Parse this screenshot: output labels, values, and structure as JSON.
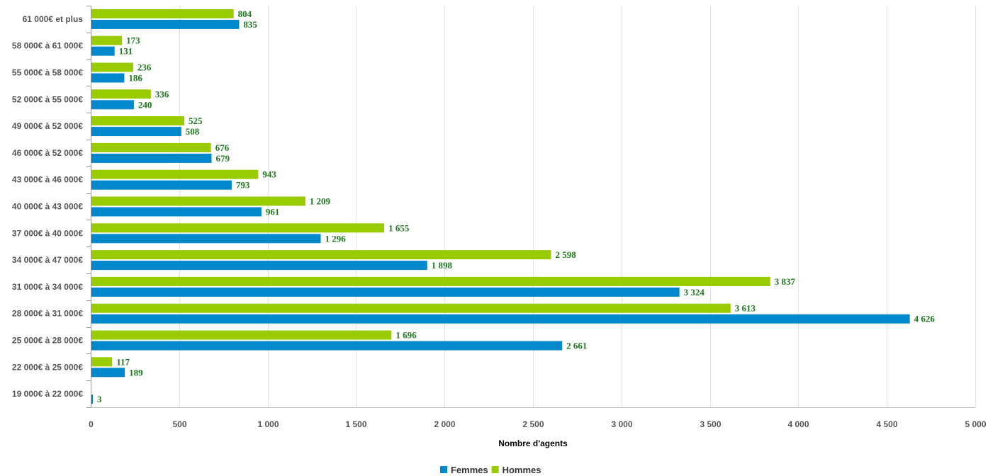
{
  "chart_data": {
    "type": "bar",
    "orientation": "horizontal",
    "categories": [
      "61 000€ et plus",
      "58 000€ à 61 000€",
      "55 000€ à 58 000€",
      "52 000€ à 55 000€",
      "49 000€ à 52 000€",
      "46 000€ à 52 000€",
      "43 000€ à 46 000€",
      "40 000€ à 43 000€",
      "37 000€ à 40 000€",
      "34 000€ à 47 000€",
      "31 000€ à 34 000€",
      "28 000€ à 31 000€",
      "25 000€ à 28 000€",
      "22 000€ à 25 000€",
      "19 000€ à 22 000€"
    ],
    "series": [
      {
        "name": "Hommes",
        "color": "#99cc00",
        "values": [
          804,
          173,
          236,
          336,
          525,
          676,
          943,
          1209,
          1655,
          2598,
          3837,
          3613,
          1696,
          117,
          null
        ],
        "labels": [
          "804",
          "173",
          "236",
          "336",
          "525",
          "676",
          "943",
          "1 209",
          "1 655",
          "2 598",
          "3 837",
          "3 613",
          "1 696",
          "117",
          ""
        ]
      },
      {
        "name": "Femmes",
        "color": "#0088cc",
        "values": [
          835,
          131,
          186,
          240,
          508,
          679,
          793,
          961,
          1296,
          1898,
          3324,
          4626,
          2661,
          189,
          3
        ],
        "labels": [
          "835",
          "131",
          "186",
          "240",
          "508",
          "679",
          "793",
          "961",
          "1 296",
          "1 898",
          "3 324",
          "4 626",
          "2 661",
          "189",
          "3"
        ]
      }
    ],
    "xlabel": "Nombre d'agents",
    "ylabel": "",
    "xlim": [
      0,
      5000
    ],
    "xticks": [
      0,
      500,
      1000,
      1500,
      2000,
      2500,
      3000,
      3500,
      4000,
      4500,
      5000
    ],
    "xtick_labels": [
      "0",
      "500",
      "1 000",
      "1 500",
      "2 000",
      "2 500",
      "3 000",
      "3 500",
      "4 000",
      "4 500",
      "5 000"
    ],
    "grid": true,
    "legend_position": "bottom-center",
    "legend_order": [
      "Femmes",
      "Hommes"
    ]
  }
}
